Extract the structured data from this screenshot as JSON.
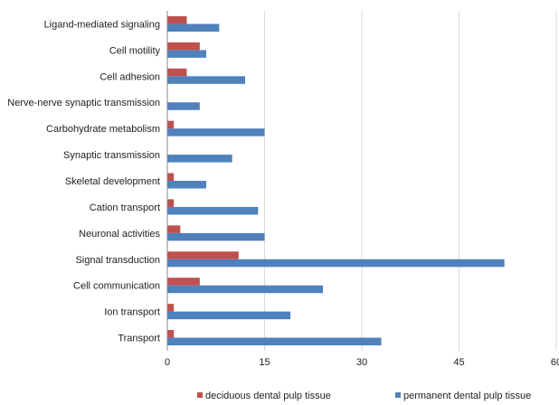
{
  "chart_data": {
    "type": "bar",
    "orientation": "horizontal",
    "categories": [
      "Ligand-mediated signaling",
      "Cell motility",
      "Cell adhesion",
      "Nerve-nerve synaptic transmission",
      "Carbohydrate metabolism",
      "Synaptic transmission",
      "Skeletal development",
      "Cation transport",
      "Neuronal activities",
      "Signal transduction",
      "Cell communication",
      "Ion transport",
      "Transport"
    ],
    "series": [
      {
        "name": "deciduous dental pulp tissue",
        "color": "#c0504d",
        "values": [
          3,
          5,
          3,
          0,
          1,
          0,
          1,
          1,
          2,
          11,
          5,
          1,
          1
        ]
      },
      {
        "name": "permanent dental pulp tissue",
        "color": "#4f81bd",
        "values": [
          8,
          6,
          12,
          5,
          15,
          10,
          6,
          14,
          15,
          52,
          24,
          19,
          33
        ]
      }
    ],
    "xlim": [
      0,
      60
    ],
    "xticks": [
      "0",
      "15",
      "30",
      "45",
      "60"
    ],
    "grid": "vertical",
    "legend_position": "bottom"
  }
}
